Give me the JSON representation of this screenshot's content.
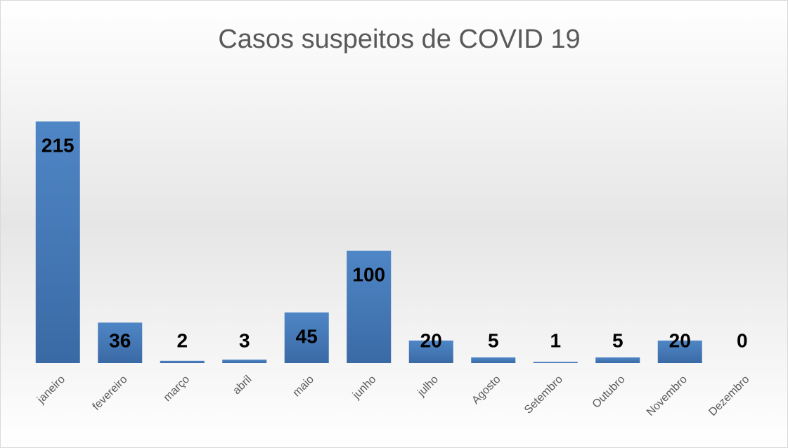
{
  "chart_data": {
    "type": "bar",
    "title": "Casos suspeitos de COVID 19",
    "categories": [
      "janeiro",
      "fevereiro",
      "março",
      "abril",
      "maio",
      "junho",
      "julho",
      "Agosto",
      "Setembro",
      "Outubro",
      "Novembro",
      "Dezembro"
    ],
    "values": [
      215,
      36,
      2,
      3,
      45,
      100,
      20,
      5,
      1,
      5,
      20,
      0
    ],
    "color": "#4a7ebb"
  }
}
